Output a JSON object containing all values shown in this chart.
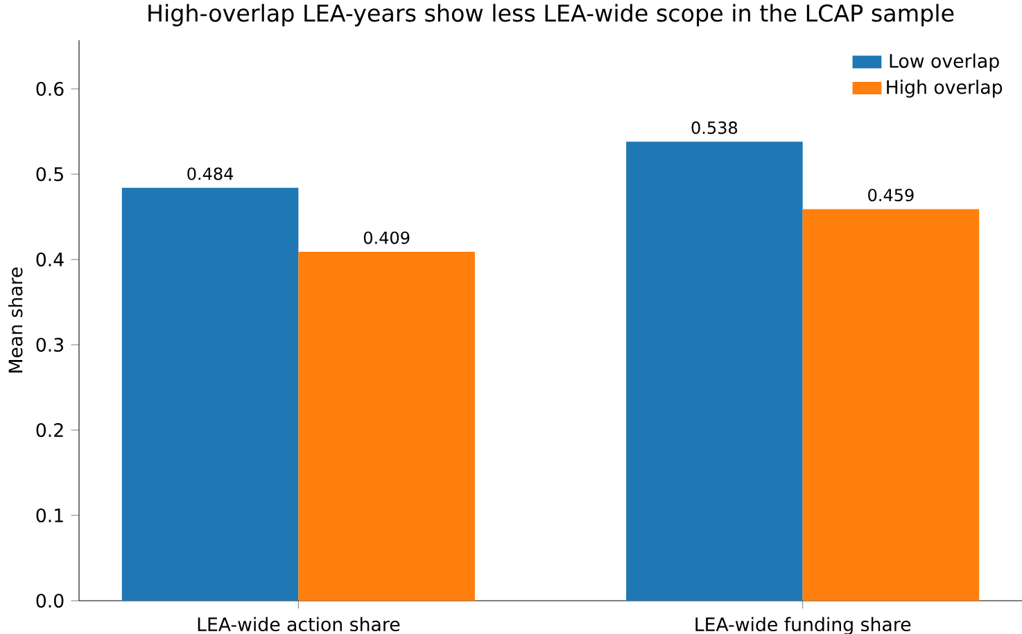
{
  "chart_data": {
    "type": "bar",
    "title": "High-overlap LEA-years show less LEA-wide scope in the LCAP sample",
    "ylabel": "Mean share",
    "categories": [
      "LEA-wide action share",
      "LEA-wide funding share"
    ],
    "series": [
      {
        "name": "Low overlap",
        "color": "#1f77b4",
        "values": [
          0.484,
          0.538
        ]
      },
      {
        "name": "High overlap",
        "color": "#ff7f0e",
        "values": [
          0.409,
          0.459
        ]
      }
    ],
    "ylim": [
      0,
      0.657
    ],
    "yticks": [
      {
        "value": 0,
        "label": "0.0"
      },
      0.1,
      0.2,
      0.3,
      0.4,
      0.5,
      0.6
    ],
    "data_labels": true,
    "legend": "top right"
  }
}
